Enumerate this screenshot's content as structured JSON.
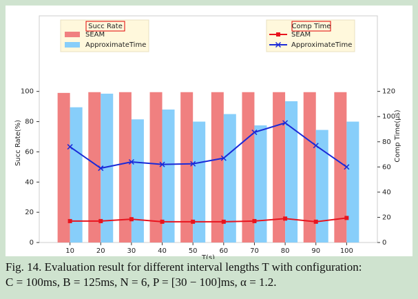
{
  "chart_data": {
    "type": "bar",
    "x": [
      10,
      20,
      30,
      40,
      50,
      60,
      70,
      80,
      90,
      100
    ],
    "xlim": [
      0,
      110
    ],
    "xticks": [
      10,
      20,
      30,
      40,
      50,
      60,
      70,
      80,
      90,
      100
    ],
    "ylim": [
      0,
      150
    ],
    "yticks": [
      0,
      20,
      40,
      60,
      80,
      100
    ],
    "y2lim": [
      0,
      180
    ],
    "y2ticks": [
      0,
      20,
      40,
      60,
      80,
      100,
      120
    ],
    "xlabel": "T(s)",
    "ylabel": "Succ Rate(%)",
    "y2label": "Comp Time(µs)",
    "legend_titles": [
      "Succ Rate",
      "Comp Time"
    ],
    "series": [
      {
        "name": "SEAM",
        "type": "bar",
        "color": "#f08080",
        "values": [
          99,
          99.5,
          99.5,
          99.5,
          99.5,
          99.5,
          99.5,
          99.5,
          99.5,
          99.5
        ]
      },
      {
        "name": "ApproximateTime",
        "type": "bar",
        "color": "#87cefa",
        "values": [
          89.5,
          98.5,
          81.5,
          88,
          80,
          85,
          77.5,
          93.5,
          74.5,
          80
        ]
      },
      {
        "name": "SEAM",
        "type": "line",
        "axis": "y2",
        "marker": "square",
        "color": "#e8141e",
        "values": [
          17,
          17,
          18.5,
          16.5,
          16.5,
          16.5,
          17,
          19,
          16.5,
          19.5
        ]
      },
      {
        "name": "ApproximateTime",
        "type": "line",
        "axis": "y2",
        "marker": "x",
        "color": "#1a2ad8",
        "values": [
          76,
          59,
          64,
          62,
          62.5,
          67,
          87.5,
          95,
          77,
          60
        ]
      }
    ],
    "caption": [
      "Fig. 14.  Evaluation result for different interval lengths T with configuration:",
      "C = 100ms, B = 125ms, N = 6, P = [30 − 100]ms, α = 1.2."
    ]
  }
}
